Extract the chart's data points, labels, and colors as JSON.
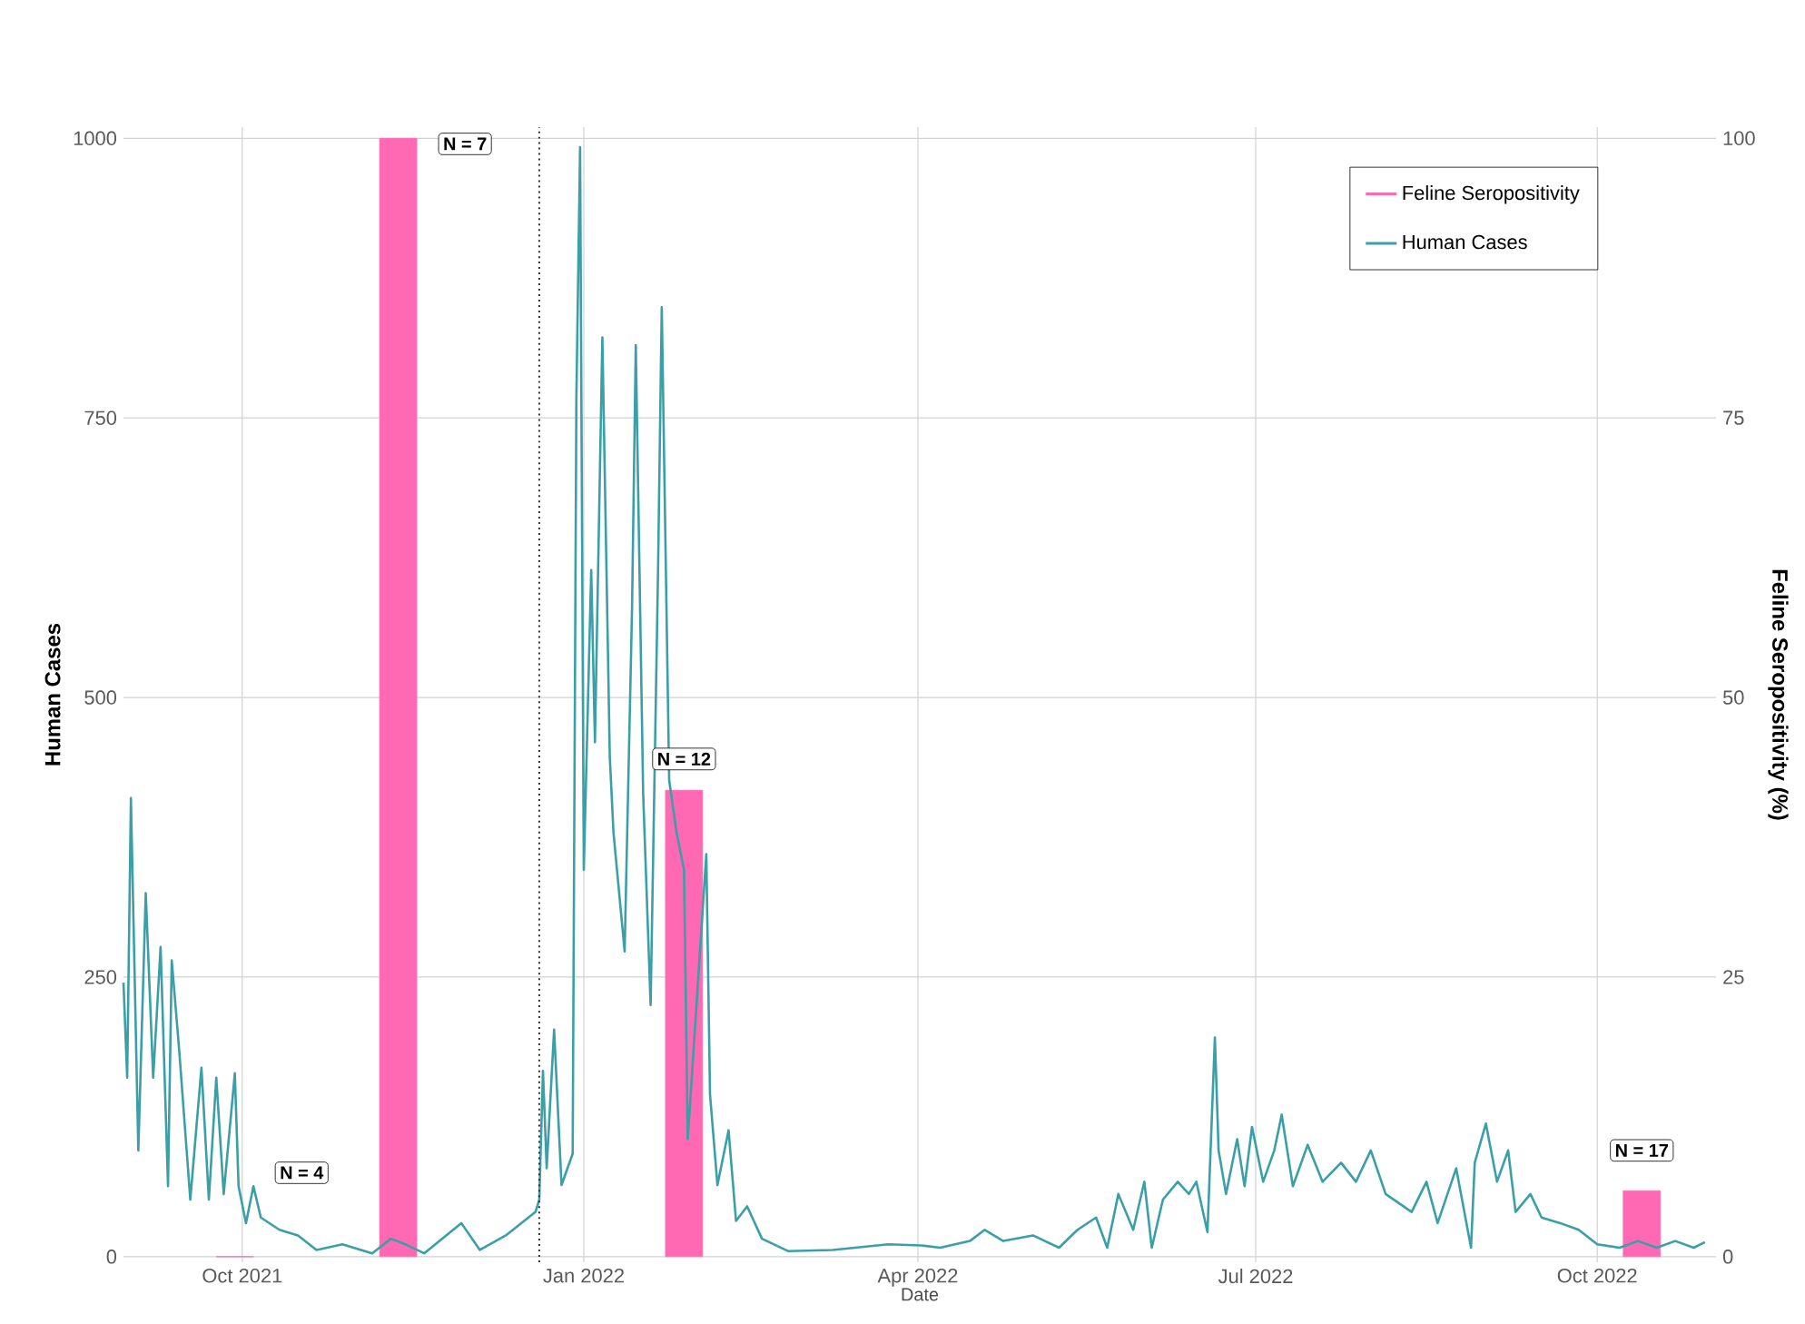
{
  "chart_data": {
    "type": "line",
    "xlabel": "Date",
    "ylabel": "Human Cases",
    "y2label": "Feline Seropositivity (%)",
    "xlim": [
      "2021-08-30",
      "2022-11-02"
    ],
    "xticks": [
      {
        "value": "2021-10-01",
        "label": "Oct 2021"
      },
      {
        "value": "2022-01-01",
        "label": "Jan 2022"
      },
      {
        "value": "2022-04-01",
        "label": "Apr 2022"
      },
      {
        "value": "2022-07-01",
        "label": "Jul 2022"
      },
      {
        "value": "2022-10-01",
        "label": "Oct 2022"
      }
    ],
    "ylim": [
      -5,
      1010
    ],
    "yticks": [
      0,
      250,
      500,
      750,
      1000
    ],
    "y2lim": [
      -0.5,
      101
    ],
    "y2ticks": [
      0,
      25,
      50,
      75,
      100
    ],
    "grid": true,
    "legend": "top right",
    "series": [
      {
        "name": "Feline Seropositivity",
        "type": "bar",
        "axis": "y2",
        "color": "#ff69b4",
        "x": [
          "2021-09-29",
          "2021-11-12",
          "2022-01-28",
          "2022-10-13"
        ],
        "values": [
          0,
          100,
          41.7,
          5.9
        ]
      },
      {
        "name": "Human Cases",
        "axis": "y",
        "color": "#3a9fa6",
        "x": [
          "2021-08-30",
          "2021-08-31",
          "2021-09-01",
          "2021-09-03",
          "2021-09-05",
          "2021-09-07",
          "2021-09-09",
          "2021-09-11",
          "2021-09-12",
          "2021-09-14",
          "2021-09-17",
          "2021-09-20",
          "2021-09-22",
          "2021-09-24",
          "2021-09-26",
          "2021-09-29",
          "2021-09-30",
          "2021-10-02",
          "2021-10-04",
          "2021-10-06",
          "2021-10-11",
          "2021-10-16",
          "2021-10-21",
          "2021-10-28",
          "2021-11-05",
          "2021-11-10",
          "2021-11-14",
          "2021-11-19",
          "2021-11-29",
          "2021-12-04",
          "2021-12-11",
          "2021-12-19",
          "2021-12-20",
          "2021-12-21",
          "2021-12-22",
          "2021-12-24",
          "2021-12-26",
          "2021-12-29",
          "2021-12-30",
          "2021-12-31",
          "2022-01-01",
          "2022-01-03",
          "2022-01-04",
          "2022-01-06",
          "2022-01-08",
          "2022-01-09",
          "2022-01-12",
          "2022-01-14",
          "2022-01-15",
          "2022-01-17",
          "2022-01-19",
          "2022-01-21",
          "2022-01-22",
          "2022-01-24",
          "2022-01-26",
          "2022-01-28",
          "2022-01-29",
          "2022-02-03",
          "2022-02-04",
          "2022-02-06",
          "2022-02-09",
          "2022-02-11",
          "2022-02-14",
          "2022-02-18",
          "2022-02-25",
          "2022-03-09",
          "2022-03-24",
          "2022-04-02",
          "2022-04-07",
          "2022-04-15",
          "2022-04-19",
          "2022-04-24",
          "2022-05-02",
          "2022-05-09",
          "2022-05-14",
          "2022-05-19",
          "2022-05-22",
          "2022-05-25",
          "2022-05-29",
          "2022-06-01",
          "2022-06-03",
          "2022-06-06",
          "2022-06-10",
          "2022-06-13",
          "2022-06-15",
          "2022-06-18",
          "2022-06-20",
          "2022-06-21",
          "2022-06-23",
          "2022-06-26",
          "2022-06-28",
          "2022-06-30",
          "2022-07-03",
          "2022-07-06",
          "2022-07-08",
          "2022-07-11",
          "2022-07-15",
          "2022-07-19",
          "2022-07-24",
          "2022-07-28",
          "2022-08-01",
          "2022-08-05",
          "2022-08-12",
          "2022-08-16",
          "2022-08-19",
          "2022-08-24",
          "2022-08-28",
          "2022-08-29",
          "2022-09-01",
          "2022-09-04",
          "2022-09-07",
          "2022-09-09",
          "2022-09-13",
          "2022-09-16",
          "2022-09-21",
          "2022-09-26",
          "2022-10-01",
          "2022-10-07",
          "2022-10-12",
          "2022-10-17",
          "2022-10-22",
          "2022-10-27",
          "2022-10-30"
        ],
        "values": [
          245,
          160,
          410,
          95,
          325,
          160,
          277,
          63,
          265,
          185,
          51,
          169,
          51,
          160,
          56,
          164,
          63,
          30,
          63,
          35,
          24,
          19,
          6,
          11,
          3,
          16,
          11,
          3,
          30,
          6,
          19,
          40,
          51,
          166,
          79,
          203,
          64,
          92,
          768,
          992,
          346,
          614,
          460,
          822,
          447,
          379,
          273,
          580,
          815,
          413,
          225,
          614,
          849,
          426,
          379,
          346,
          105,
          360,
          145,
          64,
          113,
          32,
          45,
          16,
          5,
          6,
          11,
          10,
          8,
          14,
          24,
          14,
          19,
          8,
          24,
          35,
          8,
          56,
          24,
          67,
          8,
          51,
          67,
          56,
          67,
          22,
          196,
          95,
          56,
          105,
          63,
          116,
          67,
          95,
          127,
          63,
          100,
          67,
          84,
          67,
          95,
          56,
          40,
          67,
          30,
          79,
          8,
          84,
          119,
          67,
          95,
          40,
          56,
          35,
          30,
          24,
          11,
          8,
          14,
          8,
          14,
          8,
          13
        ]
      }
    ],
    "ref_lines": [
      {
        "axis": "x",
        "value": "2021-12-20",
        "line_style": "dotted"
      }
    ],
    "annotations": [
      {
        "text": "N = 4",
        "x": "2021-10-17",
        "y": 75
      },
      {
        "text": "N = 7",
        "x": "2021-11-30",
        "y": 995
      },
      {
        "text": "N = 12",
        "x": "2022-01-28",
        "y": 445
      },
      {
        "text": "N = 17",
        "x": "2022-10-13",
        "y": 95
      }
    ]
  }
}
